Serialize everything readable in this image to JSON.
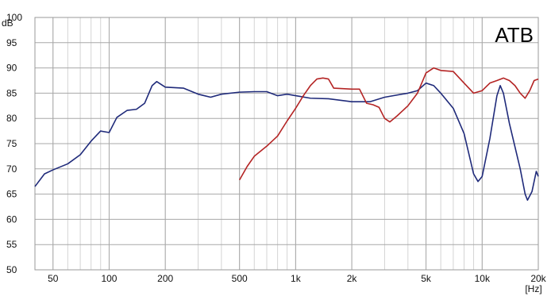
{
  "chart_data": {
    "type": "line",
    "brand": "ATB",
    "ylabel": "dB",
    "xunit": "[Hz]",
    "xscale": "log",
    "xlim": [
      40,
      20000
    ],
    "ylim": [
      50,
      100
    ],
    "grid": true,
    "x_ticks": [
      {
        "value": 50,
        "label": "50"
      },
      {
        "value": 100,
        "label": "100"
      },
      {
        "value": 200,
        "label": "200"
      },
      {
        "value": 500,
        "label": "500"
      },
      {
        "value": 1000,
        "label": "1k"
      },
      {
        "value": 2000,
        "label": "2k"
      },
      {
        "value": 5000,
        "label": "5k"
      },
      {
        "value": 10000,
        "label": "10k"
      },
      {
        "value": 20000,
        "label": "20k"
      }
    ],
    "y_ticks": [
      {
        "value": 100,
        "label": "100"
      },
      {
        "value": 95,
        "label": "95"
      },
      {
        "value": 90,
        "label": "90"
      },
      {
        "value": 85,
        "label": "85"
      },
      {
        "value": 80,
        "label": "80"
      },
      {
        "value": 75,
        "label": "75"
      },
      {
        "value": 70,
        "label": "70"
      },
      {
        "value": 65,
        "label": "65"
      },
      {
        "value": 60,
        "label": "60"
      },
      {
        "value": 55,
        "label": "55"
      },
      {
        "value": 50,
        "label": "50"
      }
    ],
    "series": [
      {
        "color": "#1f2a7a",
        "points": [
          [
            40,
            66.5
          ],
          [
            45,
            69
          ],
          [
            50,
            69.8
          ],
          [
            60,
            71
          ],
          [
            70,
            72.8
          ],
          [
            80,
            75.5
          ],
          [
            90,
            77.5
          ],
          [
            100,
            77.2
          ],
          [
            110,
            80.2
          ],
          [
            125,
            81.6
          ],
          [
            140,
            81.8
          ],
          [
            155,
            83
          ],
          [
            170,
            86.5
          ],
          [
            180,
            87.3
          ],
          [
            200,
            86.2
          ],
          [
            250,
            86
          ],
          [
            300,
            84.8
          ],
          [
            350,
            84.2
          ],
          [
            400,
            84.8
          ],
          [
            500,
            85.2
          ],
          [
            600,
            85.3
          ],
          [
            700,
            85.3
          ],
          [
            800,
            84.5
          ],
          [
            900,
            84.8
          ],
          [
            1000,
            84.5
          ],
          [
            1200,
            84
          ],
          [
            1500,
            83.9
          ],
          [
            2000,
            83.3
          ],
          [
            2500,
            83.3
          ],
          [
            3000,
            84.2
          ],
          [
            4000,
            85
          ],
          [
            4500,
            85.5
          ],
          [
            5000,
            87
          ],
          [
            5500,
            86.5
          ],
          [
            6000,
            85
          ],
          [
            7000,
            82
          ],
          [
            8000,
            77
          ],
          [
            9000,
            69
          ],
          [
            9500,
            67.5
          ],
          [
            10000,
            68.5
          ],
          [
            11000,
            76
          ],
          [
            12000,
            84.5
          ],
          [
            12500,
            86.5
          ],
          [
            13000,
            85
          ],
          [
            14000,
            79
          ],
          [
            16000,
            70
          ],
          [
            17000,
            65
          ],
          [
            17500,
            63.8
          ],
          [
            18500,
            65.5
          ],
          [
            19500,
            69.5
          ],
          [
            20000,
            68.5
          ]
        ]
      },
      {
        "color": "#b42424",
        "points": [
          [
            500,
            67.8
          ],
          [
            550,
            70.5
          ],
          [
            600,
            72.5
          ],
          [
            700,
            74.5
          ],
          [
            800,
            76.5
          ],
          [
            900,
            79.5
          ],
          [
            1000,
            82
          ],
          [
            1100,
            84.5
          ],
          [
            1200,
            86.5
          ],
          [
            1300,
            87.8
          ],
          [
            1400,
            88
          ],
          [
            1500,
            87.8
          ],
          [
            1600,
            86
          ],
          [
            2000,
            85.8
          ],
          [
            2200,
            85.8
          ],
          [
            2400,
            83
          ],
          [
            2600,
            82.7
          ],
          [
            2800,
            82.2
          ],
          [
            3000,
            80
          ],
          [
            3200,
            79.3
          ],
          [
            3500,
            80.5
          ],
          [
            4000,
            82.5
          ],
          [
            4500,
            85
          ],
          [
            5000,
            89
          ],
          [
            5500,
            90
          ],
          [
            6000,
            89.5
          ],
          [
            7000,
            89.3
          ],
          [
            8000,
            87
          ],
          [
            9000,
            85
          ],
          [
            10000,
            85.5
          ],
          [
            11000,
            87
          ],
          [
            12000,
            87.5
          ],
          [
            13000,
            88
          ],
          [
            14000,
            87.5
          ],
          [
            15000,
            86.5
          ],
          [
            16000,
            85
          ],
          [
            17000,
            84
          ],
          [
            18000,
            85.5
          ],
          [
            19000,
            87.5
          ],
          [
            20000,
            87.8
          ]
        ]
      }
    ]
  }
}
